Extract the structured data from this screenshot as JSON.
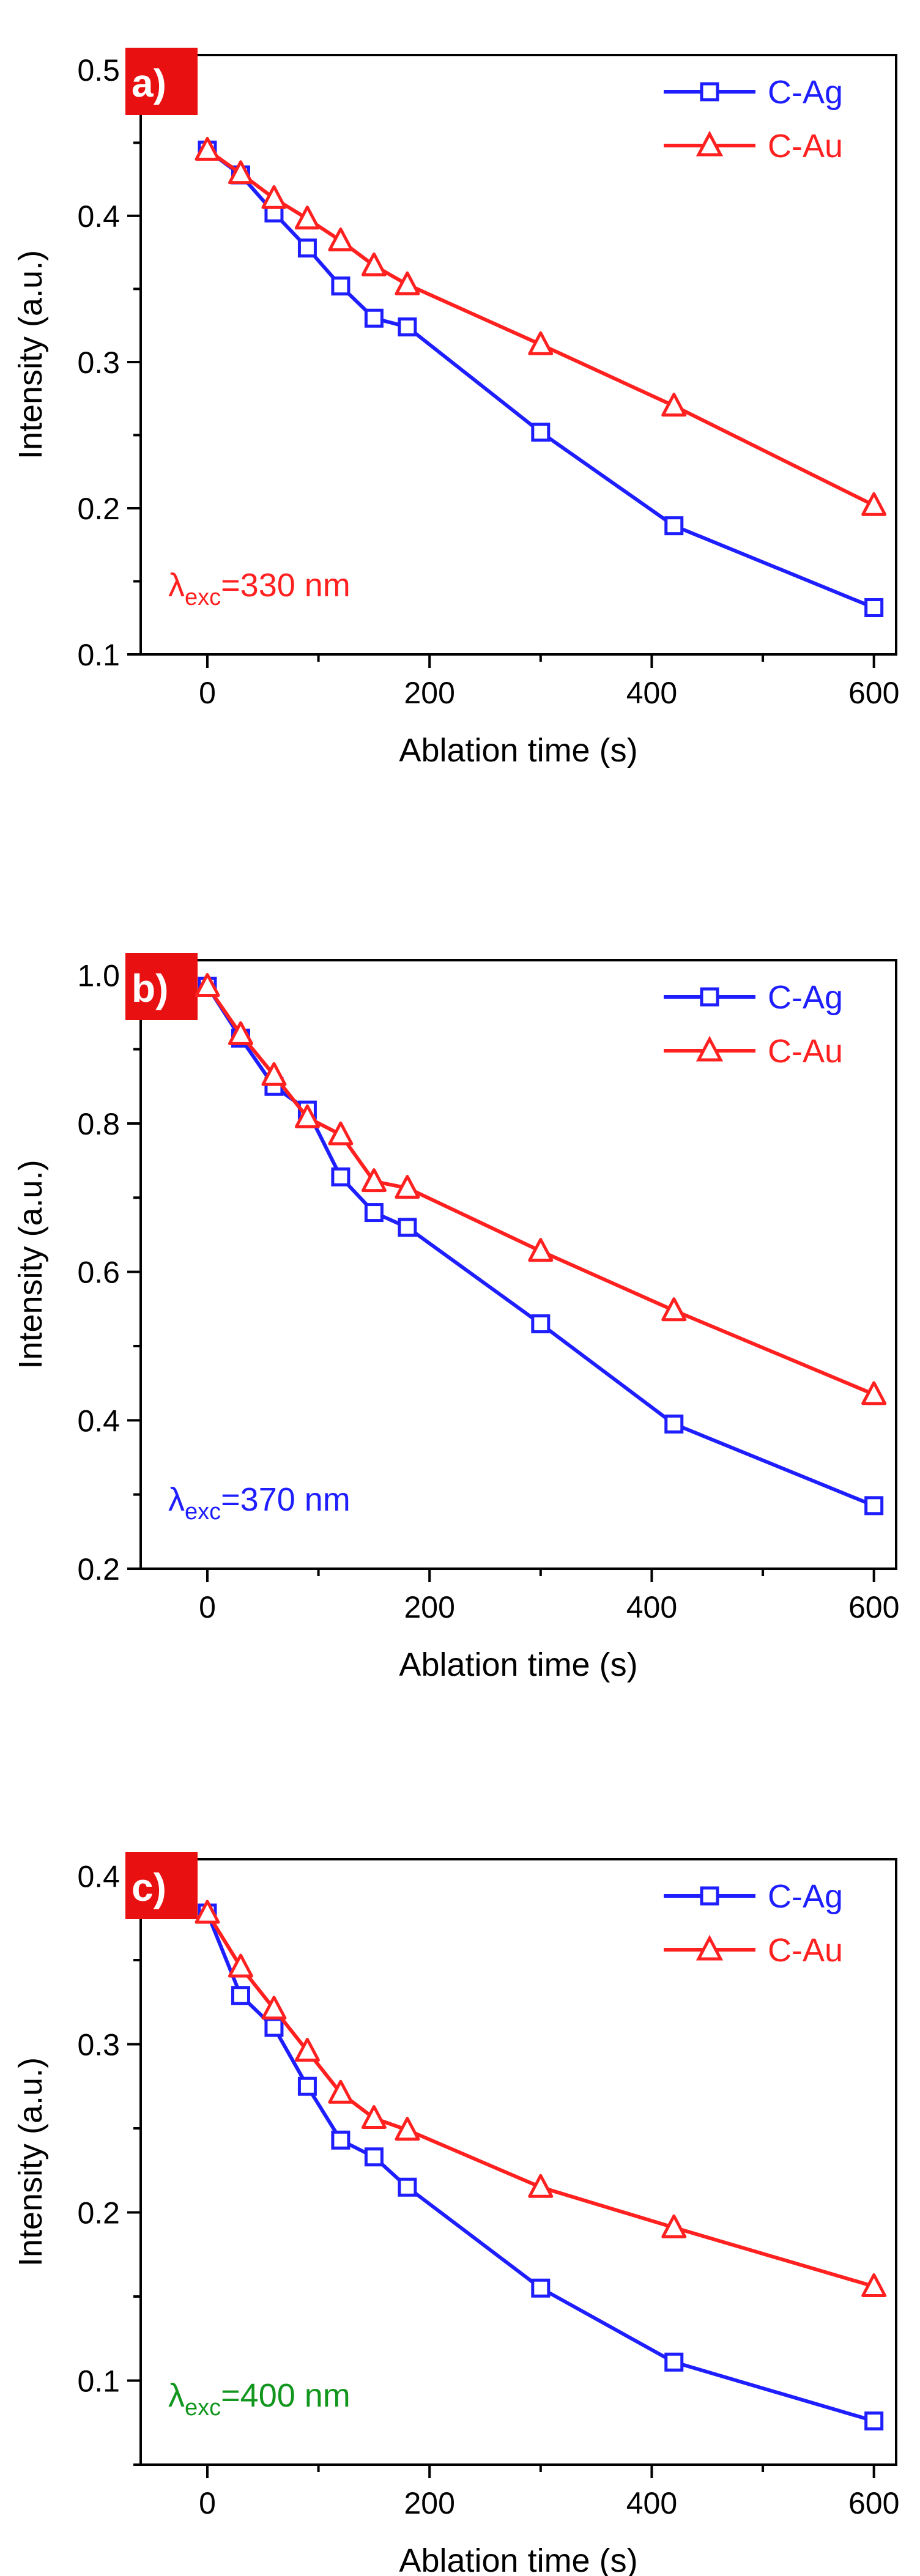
{
  "chart_data": [
    {
      "type": "line",
      "panel_label": "a)",
      "annotation": {
        "symbol": "λ",
        "subscript": "exc",
        "text": "=330 nm",
        "color": "#ff2020"
      },
      "xlabel": "Ablation time (s)",
      "ylabel": "Intensity (a.u.)",
      "xlim": [
        -60,
        620
      ],
      "ylim": [
        0.1,
        0.51
      ],
      "xticks": [
        0,
        200,
        400,
        600
      ],
      "xtick_labels": [
        "0",
        "200",
        "400",
        "600"
      ],
      "yticks": [
        0.1,
        0.2,
        0.3,
        0.4,
        0.5
      ],
      "ytick_labels": [
        "0.1",
        "0.2",
        "0.3",
        "0.4",
        "0.5"
      ],
      "legend_position": "top-right",
      "series": [
        {
          "name": "C-Ag",
          "color": "#1e1eff",
          "marker": "square",
          "x": [
            0,
            30,
            60,
            90,
            120,
            150,
            180,
            300,
            420,
            600
          ],
          "y": [
            0.445,
            0.428,
            0.402,
            0.378,
            0.352,
            0.33,
            0.324,
            0.252,
            0.188,
            0.132
          ]
        },
        {
          "name": "C-Au",
          "color": "#ff2020",
          "marker": "triangle",
          "x": [
            0,
            30,
            60,
            90,
            120,
            150,
            180,
            300,
            420,
            600
          ],
          "y": [
            0.445,
            0.429,
            0.412,
            0.398,
            0.383,
            0.366,
            0.353,
            0.312,
            0.27,
            0.202
          ]
        }
      ]
    },
    {
      "type": "line",
      "panel_label": "b)",
      "annotation": {
        "symbol": "λ",
        "subscript": "exc",
        "text": "=370 nm",
        "color": "#1e1eff"
      },
      "xlabel": "Ablation time (s)",
      "ylabel": "Intensity (a.u.)",
      "xlim": [
        -60,
        620
      ],
      "ylim": [
        0.2,
        1.02
      ],
      "xticks": [
        0,
        200,
        400,
        600
      ],
      "xtick_labels": [
        "0",
        "200",
        "400",
        "600"
      ],
      "yticks": [
        0.2,
        0.4,
        0.6,
        0.8,
        1.0
      ],
      "ytick_labels": [
        "0.2",
        "0.4",
        "0.6",
        "0.8",
        "1.0"
      ],
      "legend_position": "top-right",
      "series": [
        {
          "name": "C-Ag",
          "color": "#1e1eff",
          "marker": "square",
          "x": [
            0,
            30,
            60,
            90,
            120,
            150,
            180,
            300,
            420,
            600
          ],
          "y": [
            0.985,
            0.915,
            0.85,
            0.818,
            0.728,
            0.68,
            0.66,
            0.53,
            0.395,
            0.285
          ]
        },
        {
          "name": "C-Au",
          "color": "#ff2020",
          "marker": "triangle",
          "x": [
            0,
            30,
            60,
            90,
            120,
            150,
            180,
            300,
            420,
            600
          ],
          "y": [
            0.985,
            0.92,
            0.865,
            0.808,
            0.785,
            0.722,
            0.713,
            0.628,
            0.548,
            0.435
          ]
        }
      ]
    },
    {
      "type": "line",
      "panel_label": "c)",
      "annotation": {
        "symbol": "λ",
        "subscript": "exc",
        "text": "=400 nm",
        "color": "#12961e"
      },
      "xlabel": "Ablation time (s)",
      "ylabel": "Intensity (a.u.)",
      "xlim": [
        -60,
        620
      ],
      "ylim": [
        0.05,
        0.41
      ],
      "xticks": [
        0,
        200,
        400,
        600
      ],
      "xtick_labels": [
        "0",
        "200",
        "400",
        "600"
      ],
      "yticks": [
        0.1,
        0.2,
        0.3,
        0.4
      ],
      "ytick_labels": [
        "0.1",
        "0.2",
        "0.3",
        "0.4"
      ],
      "legend_position": "top-right",
      "series": [
        {
          "name": "C-Ag",
          "color": "#1e1eff",
          "marker": "square",
          "x": [
            0,
            30,
            60,
            90,
            120,
            150,
            180,
            300,
            420,
            600
          ],
          "y": [
            0.378,
            0.329,
            0.31,
            0.275,
            0.243,
            0.233,
            0.215,
            0.155,
            0.111,
            0.076
          ]
        },
        {
          "name": "C-Au",
          "color": "#ff2020",
          "marker": "triangle",
          "x": [
            0,
            30,
            60,
            90,
            120,
            150,
            180,
            300,
            420,
            600
          ],
          "y": [
            0.378,
            0.346,
            0.321,
            0.296,
            0.271,
            0.256,
            0.249,
            0.215,
            0.191,
            0.156
          ]
        }
      ]
    }
  ]
}
